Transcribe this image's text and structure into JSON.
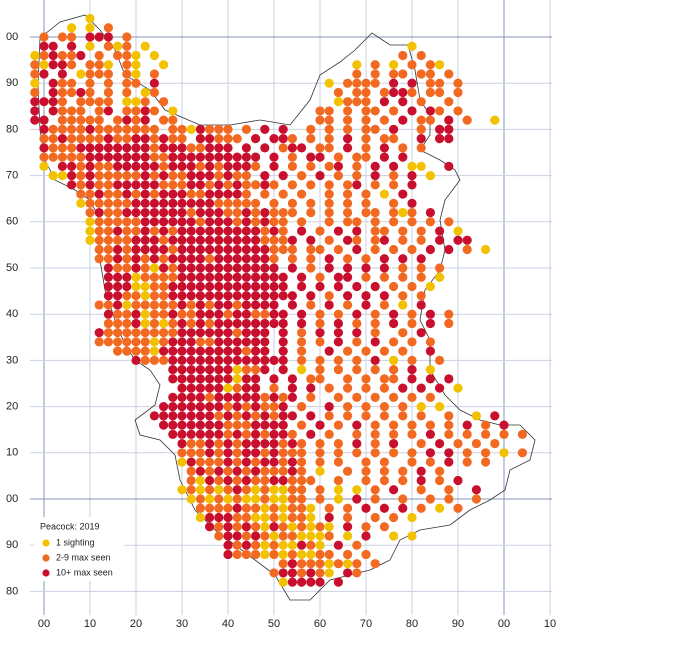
{
  "map": {
    "xticks": [
      {
        "value": 0,
        "label": "00"
      },
      10,
      20,
      30,
      40,
      50,
      60,
      70,
      80,
      90,
      {
        "value": 100,
        "label": "00"
      },
      {
        "value": 110,
        "label": "10"
      }
    ],
    "yticks": [
      {
        "value": 100,
        "label": "00"
      },
      90,
      80,
      70,
      60,
      50,
      40,
      30,
      20,
      10,
      {
        "value": 0,
        "label": "00"
      },
      {
        "value": -10,
        "label": "90"
      },
      {
        "value": -20,
        "label": "80"
      }
    ],
    "legend": {
      "title": "Peacock:  2019",
      "items": [
        {
          "label": "1 sighting",
          "color": "#f2c200"
        },
        {
          "label": "2-9 max seen",
          "color": "#f26a22"
        },
        {
          "label": "10+ max seen",
          "color": "#c8102e"
        }
      ]
    },
    "dot_rows": [
      {
        "y": 104,
        "codes": "......1"
      },
      {
        "y": 102,
        "codes": "....1.1.2"
      },
      {
        "y": 100,
        "codes": ".2.22.333.2"
      },
      {
        "y": 98,
        "codes": ".33.3.1.212.1............................1"
      },
      {
        "y": 96,
        "codes": "123223.2.221.1..........................2.2"
      },
      {
        "y": 94,
        "codes": "21332.221.21..1....................1.2.1.2.21"
      },
      {
        "y": 92,
        "codes": "23.3.1222.21.2.....................2.2.22.22.2"
      },
      {
        "y": 90,
        "codes": "1.322.2.2.22.3..................1.2222.3.3.22.2"
      },
      {
        "y": 88,
        "codes": "2.32232.2.2.12...................2.22.2332.22.2"
      },
      {
        "y": 86,
        "codes": "3332.2222.112.2..................1222.3.3.2..2"
      },
      {
        "y": 84,
        "codes": "3.3222.23.2232.1...............22.2.22.2.3.32.2"
      },
      {
        "y": 82,
        "codes": "33.22222.2323.22...............22.2.2.2.3.22.3.2..1"
      },
      {
        "y": 80,
        "codes": ".3222232222222.2213222.2.3.3..2.2.2.22.3..2.33"
      },
      {
        "y": 78,
        "codes": ".2232222322332322.33222.3.332.2.2.3.2.22..3.33"
      },
      {
        "y": 76,
        "codes": ".322233333333233322333.3.3.233.22.3.2.3.2.2"
      },
      {
        "y": 74,
        "codes": ".222223333333223333333333.3.2.33.2.22.3.3"
      },
      {
        "y": 72,
        "codes": ".1.3323223333323332323332.3.2.2.23.2.3.3.11..3"
      },
      {
        "y": 70,
        "codes": "..1132322222323223332322.3.3.2.3.2.2.3.2.3.1"
      },
      {
        "y": 68,
        "codes": "....32322333332223323232232.2.2.2.23.2.2.3"
      },
      {
        "y": 66,
        "codes": ".....2232232323332233332.2.2.2..2.2.2.1.3"
      },
      {
        "y": 64,
        "codes": ".....12222233333333322222.2.2.2.2.2.2..2.3"
      },
      {
        "y": 62,
        "codes": "......23223333333233322323222.2.2.2.22.212.3"
      },
      {
        "y": 60,
        "codes": "......1222223333332333232322.2..2.22.2.2.2.2.2"
      },
      {
        "y": 58,
        "codes": "......1223223232333333333232.3.2.3.3.22.2.2.3.1"
      },
      {
        "y": 56,
        "codes": "......12222333233333333332223.3.2.32.23.2.2.3.33"
      },
      {
        "y": 54,
        "codes": ".......2232333323333333333222.22.2.3.2.2.2.3.3.2.1"
      },
      {
        "y": 52,
        "codes": ".......22323232333323333332.2.2.3.2.2.3.3.3"
      },
      {
        "y": 50,
        "codes": "........3223213233333333333.3.2.3.3.3.3.2.2.2"
      },
      {
        "y": 48,
        "codes": "........33312222333333333333.3.2.33.2.2.2.2.1"
      },
      {
        "y": 46,
        "codes": "........33311223333333333333.3.3.3.3.3.2.2.1"
      },
      {
        "y": 44,
        "codes": "........332212233333333333333.3.2.3.3.3.2.2"
      },
      {
        "y": 42,
        "codes": ".......22312222232323323333.3.2.3.2.3.2.1.3"
      },
      {
        "y": 40,
        "codes": "........32231223223332332233.3.2.2.3.2.3.2.3.2"
      },
      {
        "y": 38,
        "codes": "........22231212323233333333.3.2.3.2.2.3.2.3.2"
      },
      {
        "y": 36,
        "codes": ".......3222222223333332333.3.2.3.3.3.2..2.3"
      },
      {
        "y": 34,
        "codes": ".......2222221233322333333.3.2.2.3.2.3.2.2.2"
      },
      {
        "y": 32,
        "codes": ".........22221333333333233.3.2..3.2.2.2.2..3"
      },
      {
        "y": 30,
        "codes": "...........32223333333333333.2.2.2.2.3.1.2..2"
      },
      {
        "y": 28,
        "codes": "...............33333331223.3.1.2.2.2.2.2.3.1"
      },
      {
        "y": 26,
        "codes": "...............3333333133.3.3.22..2.2.22.3.3.3"
      },
      {
        "y": 24,
        "codes": "................333331233.2.3.3.2.2.2.2.3.3.3.1"
      },
      {
        "y": 22,
        "codes": "...............33332333332323.2..2.2.2.2.2.2"
      },
      {
        "y": 20,
        "codes": "..............33333332323223.2..3.2.2.2.2.1.1"
      },
      {
        "y": 18,
        "codes": ".............3333333232323233.3.2.2.2.2.2.2..2..1.3"
      },
      {
        "y": 16,
        "codes": "..............33333332223333.2.3.2.3.2.2.2.2.2.3.2.3"
      },
      {
        "y": 14,
        "codes": "...............33333323232332.3.2..2.2.2.2.3.2.2.2.2.2"
      },
      {
        "y": 12,
        "codes": "................32232323333232.2.2.3.2.3..2.3.2.2.2"
      },
      {
        "y": 10,
        "codes": "................22232323323222.2.2.2.2.2.2.3.3.2.2.1.2"
      },
      {
        "y": 8,
        "codes": "................13222323233232.2.2..2.2..2.2.3.2.2"
      },
      {
        "y": 6,
        "codes": ".................2323232322232.1..2.2.2.2.3.2"
      },
      {
        "y": 4,
        "codes": ".................21323232233222..2..2.2.2.3.2.3"
      },
      {
        "y": 2,
        "codes": "................12121232121122.2.1.1.2.3..2..2..3"
      },
      {
        "y": 0,
        "codes": ".................1212121121122.2.1.3.2..2..2.2..2"
      },
      {
        "y": -2,
        "codes": "..................2222322121221.2.2.3.3.3.2.1.2"
      },
      {
        "y": -4,
        "codes": "..................1333221121221.3.2..2.2.1"
      },
      {
        "y": -6,
        "codes": "...................32323213212121.3.2.2"
      },
      {
        "y": -8,
        "codes": "....................2332321221112.1.3..1.1"
      },
      {
        "y": -10,
        "codes": ".....................32321211321.3.2"
      },
      {
        "y": -12,
        "codes": ".....................322212121122.2.2"
      },
      {
        "y": -14,
        "codes": "...........................232221212.2"
      },
      {
        "y": -16,
        "codes": "..........................2332321.32"
      },
      {
        "y": -18,
        "codes": "...........................13333.3"
      }
    ]
  }
}
